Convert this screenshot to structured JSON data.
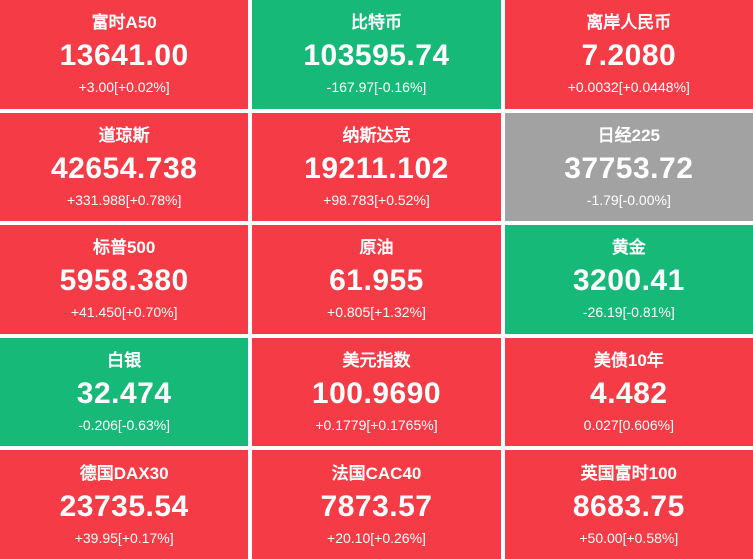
{
  "colors": {
    "up": "#f53b45",
    "down": "#17b978",
    "flat": "#a2a2a2",
    "text": "#ffffff",
    "background": "#ffffff"
  },
  "tiles": [
    {
      "name": "富时A50",
      "value": "13641.00",
      "change": "+3.00[+0.02%]",
      "trend": "up",
      "color": "#f53b45"
    },
    {
      "name": "比特币",
      "value": "103595.74",
      "change": "-167.97[-0.16%]",
      "trend": "down",
      "color": "#17b978"
    },
    {
      "name": "离岸人民币",
      "value": "7.2080",
      "change": "+0.0032[+0.0448%]",
      "trend": "up",
      "color": "#f53b45"
    },
    {
      "name": "道琼斯",
      "value": "42654.738",
      "change": "+331.988[+0.78%]",
      "trend": "up",
      "color": "#f53b45"
    },
    {
      "name": "纳斯达克",
      "value": "19211.102",
      "change": "+98.783[+0.52%]",
      "trend": "up",
      "color": "#f53b45"
    },
    {
      "name": "日经225",
      "value": "37753.72",
      "change": "-1.79[-0.00%]",
      "trend": "flat",
      "color": "#a2a2a2"
    },
    {
      "name": "标普500",
      "value": "5958.380",
      "change": "+41.450[+0.70%]",
      "trend": "up",
      "color": "#f53b45"
    },
    {
      "name": "原油",
      "value": "61.955",
      "change": "+0.805[+1.32%]",
      "trend": "up",
      "color": "#f53b45"
    },
    {
      "name": "黄金",
      "value": "3200.41",
      "change": "-26.19[-0.81%]",
      "trend": "down",
      "color": "#17b978"
    },
    {
      "name": "白银",
      "value": "32.474",
      "change": "-0.206[-0.63%]",
      "trend": "down",
      "color": "#17b978"
    },
    {
      "name": "美元指数",
      "value": "100.9690",
      "change": "+0.1779[+0.1765%]",
      "trend": "up",
      "color": "#f53b45"
    },
    {
      "name": "美债10年",
      "value": "4.482",
      "change": "0.027[0.606%]",
      "trend": "up",
      "color": "#f53b45"
    },
    {
      "name": "德国DAX30",
      "value": "23735.54",
      "change": "+39.95[+0.17%]",
      "trend": "up",
      "color": "#f53b45"
    },
    {
      "name": "法国CAC40",
      "value": "7873.57",
      "change": "+20.10[+0.26%]",
      "trend": "up",
      "color": "#f53b45"
    },
    {
      "name": "英国富时100",
      "value": "8683.75",
      "change": "+50.00[+0.58%]",
      "trend": "up",
      "color": "#f53b45"
    }
  ]
}
